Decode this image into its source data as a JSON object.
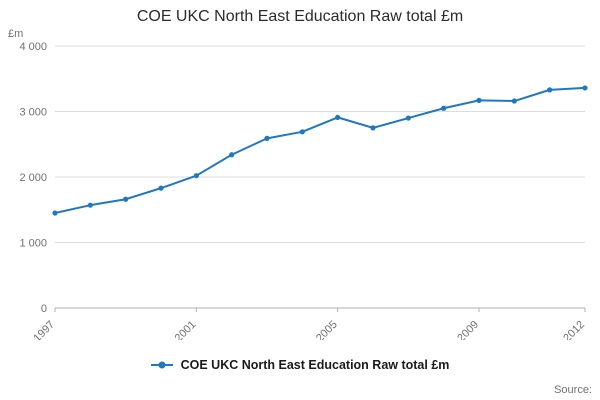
{
  "page": {
    "source_label": "Source:"
  },
  "chart_data": {
    "type": "line",
    "title": "COE UKC North East Education Raw total £m",
    "unit_label": "£m",
    "xlabel": "",
    "ylabel": "£m",
    "x": [
      1997,
      1998,
      1999,
      2000,
      2001,
      2002,
      2003,
      2004,
      2005,
      2006,
      2007,
      2008,
      2009,
      2010,
      2011,
      2012
    ],
    "series": [
      {
        "name": "COE UKC North East Education Raw total £m",
        "values": [
          1450,
          1570,
          1660,
          1830,
          2020,
          2340,
          2590,
          2690,
          2910,
          2750,
          2900,
          3050,
          3170,
          3160,
          3330,
          3360
        ]
      }
    ],
    "ylim": [
      0,
      4000
    ],
    "y_ticks": [
      {
        "value": 0,
        "label": "0"
      },
      {
        "value": 1000,
        "label": "1 000"
      },
      {
        "value": 2000,
        "label": "2 000"
      },
      {
        "value": 3000,
        "label": "3 000"
      },
      {
        "value": 4000,
        "label": "4 000"
      }
    ],
    "x_ticks": [
      {
        "value": 1997,
        "label": "1997"
      },
      {
        "value": 2001,
        "label": "2001"
      },
      {
        "value": 2005,
        "label": "2005"
      },
      {
        "value": 2009,
        "label": "2009"
      },
      {
        "value": 2012,
        "label": "2012"
      }
    ],
    "grid": true,
    "legend_position": "bottom",
    "line_color": "#1f78c1",
    "grid_color": "#dcdcdc",
    "axis_color": "#b0b0b0",
    "tick_text_color": "#707070"
  }
}
